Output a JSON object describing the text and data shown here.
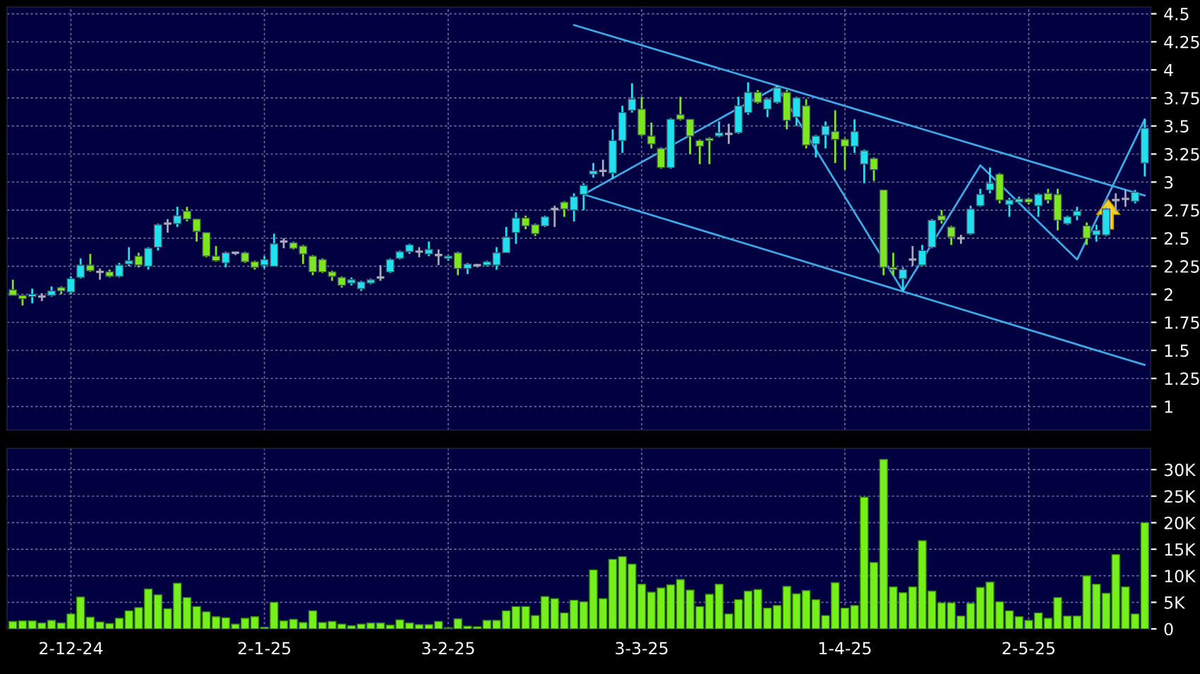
{
  "chart_data": [
    {
      "type": "candlestick",
      "grid": true,
      "ylim": [
        0.79,
        4.56
      ],
      "yticks": [
        1,
        1.25,
        1.5,
        1.75,
        2,
        2.25,
        2.5,
        2.75,
        3,
        3.25,
        3.5,
        3.75,
        4,
        4.25,
        4.5
      ],
      "categories": [
        null,
        null,
        null,
        null,
        null,
        null,
        null,
        null,
        null,
        null,
        null,
        null,
        null,
        null,
        null,
        null,
        null,
        null,
        null,
        null,
        null,
        null,
        null,
        null,
        null,
        null,
        null,
        null,
        null,
        null,
        null,
        null,
        null,
        null,
        null,
        null,
        null,
        null,
        null,
        null,
        null,
        null,
        null,
        null,
        null,
        null,
        null,
        null,
        null,
        null,
        null,
        null,
        null,
        null,
        null,
        null,
        null,
        null,
        null,
        null,
        null,
        null,
        null,
        null,
        null,
        null,
        null,
        null,
        null,
        null,
        null,
        null,
        null,
        null,
        null,
        null,
        null,
        null,
        null,
        null,
        null,
        null,
        null,
        null,
        null,
        null,
        null,
        null,
        null,
        null,
        null,
        null,
        null,
        null,
        null,
        null,
        null,
        null,
        null,
        null,
        null,
        null,
        null,
        null,
        null,
        null,
        null,
        null,
        null,
        null,
        null,
        null,
        null,
        null,
        null,
        null,
        null,
        null
      ],
      "ohlc": [
        [
          2.04,
          2.13,
          1.99,
          1.99
        ],
        [
          1.99,
          1.99,
          1.9,
          1.96
        ],
        [
          1.98,
          2.05,
          1.92,
          2.0
        ],
        [
          1.98,
          2.01,
          1.94,
          1.98
        ],
        [
          1.99,
          2.07,
          1.98,
          2.03
        ],
        [
          2.06,
          2.07,
          2.0,
          2.03
        ],
        [
          2.02,
          2.16,
          2.0,
          2.14
        ],
        [
          2.15,
          2.32,
          2.14,
          2.26
        ],
        [
          2.26,
          2.36,
          2.2,
          2.21
        ],
        [
          2.2,
          2.23,
          2.13,
          2.2
        ],
        [
          2.2,
          2.22,
          2.15,
          2.16
        ],
        [
          2.16,
          2.28,
          2.15,
          2.26
        ],
        [
          2.27,
          2.42,
          2.25,
          2.3
        ],
        [
          2.34,
          2.37,
          2.24,
          2.26
        ],
        [
          2.25,
          2.42,
          2.22,
          2.41
        ],
        [
          2.42,
          2.63,
          2.39,
          2.62
        ],
        [
          2.63,
          2.67,
          2.55,
          2.63
        ],
        [
          2.63,
          2.78,
          2.6,
          2.7
        ],
        [
          2.74,
          2.78,
          2.65,
          2.67
        ],
        [
          2.67,
          2.67,
          2.47,
          2.56
        ],
        [
          2.55,
          2.55,
          2.33,
          2.34
        ],
        [
          2.34,
          2.43,
          2.29,
          2.3
        ],
        [
          2.28,
          2.38,
          2.24,
          2.37
        ],
        [
          2.37,
          2.38,
          2.35,
          2.37
        ],
        [
          2.37,
          2.38,
          2.28,
          2.29
        ],
        [
          2.29,
          2.3,
          2.22,
          2.24
        ],
        [
          2.26,
          2.34,
          2.23,
          2.31
        ],
        [
          2.25,
          2.54,
          2.25,
          2.45
        ],
        [
          2.47,
          2.5,
          2.41,
          2.47
        ],
        [
          2.46,
          2.47,
          2.4,
          2.41
        ],
        [
          2.43,
          2.44,
          2.27,
          2.36
        ],
        [
          2.34,
          2.35,
          2.17,
          2.2
        ],
        [
          2.31,
          2.32,
          2.19,
          2.2
        ],
        [
          2.2,
          2.21,
          2.12,
          2.16
        ],
        [
          2.15,
          2.16,
          2.06,
          2.08
        ],
        [
          2.1,
          2.15,
          2.08,
          2.13
        ],
        [
          2.05,
          2.12,
          2.03,
          2.11
        ],
        [
          2.1,
          2.14,
          2.09,
          2.13
        ],
        [
          2.15,
          2.26,
          2.12,
          2.15
        ],
        [
          2.2,
          2.32,
          2.19,
          2.31
        ],
        [
          2.32,
          2.39,
          2.31,
          2.38
        ],
        [
          2.38,
          2.45,
          2.36,
          2.44
        ],
        [
          2.38,
          2.42,
          2.33,
          2.38
        ],
        [
          2.36,
          2.47,
          2.34,
          2.4
        ],
        [
          2.35,
          2.4,
          2.26,
          2.35
        ],
        [
          2.32,
          2.35,
          2.3,
          2.34
        ],
        [
          2.37,
          2.38,
          2.17,
          2.23
        ],
        [
          2.23,
          2.28,
          2.18,
          2.27
        ],
        [
          2.26,
          2.27,
          2.24,
          2.26
        ],
        [
          2.26,
          2.3,
          2.25,
          2.29
        ],
        [
          2.26,
          2.42,
          2.22,
          2.37
        ],
        [
          2.37,
          2.6,
          2.37,
          2.51
        ],
        [
          2.55,
          2.73,
          2.45,
          2.68
        ],
        [
          2.68,
          2.7,
          2.58,
          2.61
        ],
        [
          2.62,
          2.63,
          2.52,
          2.54
        ],
        [
          2.61,
          2.7,
          2.6,
          2.69
        ],
        [
          2.76,
          2.79,
          2.6,
          2.76
        ],
        [
          2.82,
          2.83,
          2.69,
          2.76
        ],
        [
          2.75,
          2.9,
          2.65,
          2.87
        ],
        [
          2.89,
          2.99,
          2.75,
          2.97
        ],
        [
          3.07,
          3.17,
          3.04,
          3.1
        ],
        [
          3.1,
          3.2,
          3.05,
          3.1
        ],
        [
          3.08,
          3.47,
          3.03,
          3.37
        ],
        [
          3.37,
          3.68,
          3.26,
          3.62
        ],
        [
          3.64,
          3.88,
          3.62,
          3.74
        ],
        [
          3.65,
          3.76,
          3.41,
          3.42
        ],
        [
          3.41,
          3.53,
          3.3,
          3.34
        ],
        [
          3.3,
          3.31,
          3.12,
          3.13
        ],
        [
          3.13,
          3.57,
          3.12,
          3.56
        ],
        [
          3.6,
          3.76,
          3.55,
          3.56
        ],
        [
          3.56,
          3.56,
          3.25,
          3.41
        ],
        [
          3.37,
          3.38,
          3.16,
          3.32
        ],
        [
          3.39,
          3.4,
          3.16,
          3.37
        ],
        [
          3.41,
          3.54,
          3.4,
          3.44
        ],
        [
          3.43,
          3.52,
          3.34,
          3.43
        ],
        [
          3.44,
          3.76,
          3.43,
          3.68
        ],
        [
          3.62,
          3.89,
          3.6,
          3.8
        ],
        [
          3.8,
          3.82,
          3.7,
          3.71
        ],
        [
          3.65,
          3.75,
          3.58,
          3.74
        ],
        [
          3.71,
          3.86,
          3.7,
          3.84
        ],
        [
          3.8,
          3.82,
          3.47,
          3.55
        ],
        [
          3.58,
          3.76,
          3.5,
          3.75
        ],
        [
          3.68,
          3.74,
          3.3,
          3.33
        ],
        [
          3.34,
          3.42,
          3.22,
          3.41
        ],
        [
          3.42,
          3.54,
          3.3,
          3.5
        ],
        [
          3.45,
          3.64,
          3.17,
          3.38
        ],
        [
          3.38,
          3.39,
          3.11,
          3.32
        ],
        [
          3.32,
          3.56,
          3.26,
          3.45
        ],
        [
          3.16,
          3.29,
          2.99,
          3.28
        ],
        [
          3.21,
          3.22,
          3.01,
          3.11
        ],
        [
          2.93,
          2.93,
          2.17,
          2.24
        ],
        [
          2.24,
          2.37,
          2.17,
          2.22
        ],
        [
          2.14,
          2.24,
          2.03,
          2.22
        ],
        [
          2.31,
          2.43,
          2.25,
          2.31
        ],
        [
          2.26,
          2.44,
          2.25,
          2.39
        ],
        [
          2.42,
          2.67,
          2.41,
          2.66
        ],
        [
          2.7,
          2.75,
          2.63,
          2.66
        ],
        [
          2.6,
          2.61,
          2.44,
          2.51
        ],
        [
          2.5,
          2.53,
          2.45,
          2.5
        ],
        [
          2.54,
          2.79,
          2.53,
          2.76
        ],
        [
          2.79,
          2.94,
          2.78,
          2.89
        ],
        [
          2.93,
          3.13,
          2.9,
          2.99
        ],
        [
          3.07,
          3.08,
          2.81,
          2.84
        ],
        [
          2.8,
          2.86,
          2.69,
          2.84
        ],
        [
          2.82,
          2.87,
          2.81,
          2.85
        ],
        [
          2.85,
          2.86,
          2.8,
          2.82
        ],
        [
          2.79,
          2.9,
          2.69,
          2.89
        ],
        [
          2.9,
          2.94,
          2.81,
          2.84
        ],
        [
          2.89,
          2.94,
          2.57,
          2.66
        ],
        [
          2.63,
          2.7,
          2.62,
          2.69
        ],
        [
          2.7,
          2.78,
          2.66,
          2.74
        ],
        [
          2.61,
          2.64,
          2.44,
          2.5
        ],
        [
          2.53,
          2.62,
          2.47,
          2.57
        ],
        [
          2.53,
          2.78,
          2.52,
          2.76
        ],
        [
          2.84,
          2.9,
          2.74,
          2.84
        ],
        [
          2.85,
          2.93,
          2.78,
          2.85
        ],
        [
          2.83,
          2.93,
          2.81,
          2.91
        ],
        [
          3.17,
          3.56,
          3.05,
          3.48
        ]
      ],
      "colors": [
        "#7ce61e",
        "#7ce61e",
        "#20e0f0",
        "#a8a8b8",
        "#20e0f0",
        "#7ce61e",
        "#20e0f0",
        "#20e0f0",
        "#7ce61e",
        "#a8a8b8",
        "#7ce61e",
        "#20e0f0",
        "#20e0f0",
        "#7ce61e",
        "#20e0f0",
        "#20e0f0",
        "#a8a8b8",
        "#20e0f0",
        "#7ce61e",
        "#7ce61e",
        "#7ce61e",
        "#7ce61e",
        "#20e0f0",
        "#a8a8b8",
        "#7ce61e",
        "#7ce61e",
        "#20e0f0",
        "#20e0f0",
        "#a8a8b8",
        "#7ce61e",
        "#7ce61e",
        "#7ce61e",
        "#7ce61e",
        "#7ce61e",
        "#7ce61e",
        "#20e0f0",
        "#20e0f0",
        "#20e0f0",
        "#a8a8b8",
        "#20e0f0",
        "#20e0f0",
        "#20e0f0",
        "#a8a8b8",
        "#20e0f0",
        "#a8a8b8",
        "#20e0f0",
        "#7ce61e",
        "#20e0f0",
        "#a8a8b8",
        "#20e0f0",
        "#20e0f0",
        "#20e0f0",
        "#20e0f0",
        "#7ce61e",
        "#7ce61e",
        "#20e0f0",
        "#a8a8b8",
        "#7ce61e",
        "#20e0f0",
        "#20e0f0",
        "#20e0f0",
        "#a8a8b8",
        "#20e0f0",
        "#20e0f0",
        "#20e0f0",
        "#7ce61e",
        "#7ce61e",
        "#7ce61e",
        "#20e0f0",
        "#7ce61e",
        "#7ce61e",
        "#7ce61e",
        "#7ce61e",
        "#20e0f0",
        "#a8a8b8",
        "#20e0f0",
        "#20e0f0",
        "#7ce61e",
        "#20e0f0",
        "#20e0f0",
        "#7ce61e",
        "#20e0f0",
        "#7ce61e",
        "#20e0f0",
        "#20e0f0",
        "#7ce61e",
        "#7ce61e",
        "#20e0f0",
        "#20e0f0",
        "#7ce61e",
        "#7ce61e",
        "#7ce61e",
        "#20e0f0",
        "#a8a8b8",
        "#20e0f0",
        "#20e0f0",
        "#7ce61e",
        "#7ce61e",
        "#a8a8b8",
        "#20e0f0",
        "#20e0f0",
        "#20e0f0",
        "#7ce61e",
        "#20e0f0",
        "#20e0f0",
        "#7ce61e",
        "#20e0f0",
        "#7ce61e",
        "#7ce61e",
        "#20e0f0",
        "#20e0f0",
        "#7ce61e",
        "#20e0f0",
        "#20e0f0",
        "#a8a8b8",
        "#a8a8b8",
        "#20e0f0",
        "#20e0f0"
      ],
      "series": [
        {
          "type": "line",
          "color": "#3fa9e8",
          "values": [
            null,
            null,
            null,
            null,
            null,
            null,
            null,
            null,
            null,
            null,
            null,
            null,
            null,
            null,
            null,
            null,
            null,
            null,
            null,
            null,
            null,
            null,
            null,
            null,
            null,
            null,
            null,
            null,
            null,
            null,
            null,
            null,
            null,
            null,
            null,
            null,
            null,
            null,
            null,
            null,
            null,
            null,
            null,
            null,
            null,
            null,
            null,
            null,
            null,
            null,
            null,
            null,
            null,
            null,
            null,
            null,
            null,
            null,
            4.4,
            null,
            null,
            null,
            null,
            null,
            null,
            null,
            null,
            null,
            null,
            null,
            null,
            null,
            null,
            null,
            null,
            null,
            null,
            null,
            null,
            null,
            null,
            null,
            null,
            null,
            null,
            null,
            null,
            null,
            null,
            null,
            null,
            null,
            null,
            null,
            null,
            null,
            null,
            null,
            null,
            null,
            null,
            null,
            null,
            null,
            null,
            null,
            null,
            null,
            null,
            null,
            null,
            null,
            null,
            null,
            null,
            null,
            null,
            2.88
          ]
        },
        {
          "type": "line",
          "color": "#3fa9e8",
          "values": [
            null,
            null,
            null,
            null,
            null,
            null,
            null,
            null,
            null,
            null,
            null,
            null,
            null,
            null,
            null,
            null,
            null,
            null,
            null,
            null,
            null,
            null,
            null,
            null,
            null,
            null,
            null,
            null,
            null,
            null,
            null,
            null,
            null,
            null,
            null,
            null,
            null,
            null,
            null,
            null,
            null,
            null,
            null,
            null,
            null,
            null,
            null,
            null,
            null,
            null,
            null,
            null,
            null,
            null,
            null,
            null,
            null,
            null,
            null,
            2.89,
            null,
            null,
            null,
            null,
            null,
            null,
            null,
            null,
            null,
            null,
            null,
            null,
            null,
            null,
            null,
            null,
            null,
            null,
            null,
            null,
            null,
            null,
            null,
            null,
            null,
            null,
            null,
            null,
            null,
            null,
            null,
            null,
            null,
            null,
            null,
            null,
            null,
            null,
            null,
            null,
            null,
            null,
            null,
            null,
            null,
            null,
            null,
            null,
            null,
            null,
            null,
            null,
            null,
            null,
            null,
            null,
            null,
            1.37
          ]
        },
        {
          "type": "line",
          "color": "#3fa9e8",
          "values": [
            null,
            null,
            null,
            null,
            null,
            null,
            null,
            null,
            null,
            null,
            null,
            null,
            null,
            null,
            null,
            null,
            null,
            null,
            null,
            null,
            null,
            null,
            null,
            null,
            null,
            null,
            null,
            null,
            null,
            null,
            null,
            null,
            null,
            null,
            null,
            null,
            null,
            null,
            null,
            null,
            null,
            null,
            null,
            null,
            null,
            null,
            null,
            null,
            null,
            null,
            null,
            null,
            null,
            null,
            null,
            null,
            null,
            null,
            null,
            2.89,
            null,
            null,
            null,
            null,
            null,
            null,
            null,
            null,
            null,
            null,
            null,
            null,
            null,
            null,
            null,
            null,
            null,
            null,
            null,
            3.85,
            null,
            null,
            null,
            null,
            null,
            null,
            null,
            null,
            null,
            null,
            null,
            null,
            2.03,
            null,
            null,
            null,
            null,
            null,
            null,
            null,
            3.15,
            null,
            null,
            null,
            null,
            null,
            null,
            null,
            null,
            null,
            2.31,
            null,
            null,
            null,
            null,
            null,
            null,
            3.56
          ]
        }
      ]
    },
    {
      "type": "bar",
      "grid": true,
      "color": "#76f01a",
      "ylim": [
        0,
        34
      ],
      "yticks": [
        0,
        {
          "value": 5,
          "label": "5K"
        },
        {
          "value": 10,
          "label": "10K"
        },
        {
          "value": 15,
          "label": "15K"
        },
        {
          "value": 20,
          "label": "20K"
        },
        {
          "value": 25,
          "label": "25K"
        },
        {
          "value": 30,
          "label": "30K"
        }
      ],
      "categories": [
        null,
        null,
        null,
        null,
        null,
        null,
        "2-12-24",
        null,
        null,
        null,
        null,
        null,
        null,
        null,
        null,
        null,
        null,
        null,
        null,
        null,
        null,
        null,
        null,
        null,
        null,
        null,
        "2-1-25",
        null,
        null,
        null,
        null,
        null,
        null,
        null,
        null,
        null,
        null,
        null,
        null,
        null,
        null,
        null,
        null,
        null,
        null,
        "3-2-25",
        null,
        null,
        null,
        null,
        null,
        null,
        null,
        null,
        null,
        null,
        null,
        null,
        null,
        null,
        null,
        null,
        null,
        null,
        null,
        "3-3-25",
        null,
        null,
        null,
        null,
        null,
        null,
        null,
        null,
        null,
        null,
        null,
        null,
        null,
        null,
        null,
        null,
        null,
        null,
        null,
        null,
        "1-4-25",
        null,
        null,
        null,
        null,
        null,
        null,
        null,
        null,
        null,
        null,
        null,
        null,
        null,
        null,
        null,
        null,
        null,
        null,
        "2-5-25",
        null,
        null,
        null,
        null,
        null,
        null,
        null,
        null,
        null,
        null,
        null,
        null
      ],
      "values": [
        1.4,
        1.5,
        1.5,
        1.1,
        1.6,
        1.1,
        2.8,
        6.0,
        2.2,
        1.3,
        1.0,
        2.0,
        3.4,
        4.0,
        7.5,
        6.4,
        3.8,
        8.6,
        5.9,
        4.2,
        3.2,
        2.3,
        2.1,
        0.9,
        2.0,
        2.3,
        0.3,
        5.0,
        1.5,
        1.8,
        1.2,
        3.4,
        1.2,
        1.4,
        0.9,
        0.6,
        0.9,
        1.1,
        1.1,
        0.7,
        1.7,
        1.1,
        0.8,
        0.8,
        1.4,
        0.2,
        1.9,
        0.5,
        0.4,
        1.6,
        1.6,
        3.4,
        4.2,
        4.2,
        2.5,
        6.1,
        5.7,
        3.0,
        5.4,
        5.1,
        11.1,
        5.7,
        13.1,
        13.6,
        12.2,
        8.4,
        6.9,
        7.7,
        8.3,
        9.3,
        7.3,
        4.2,
        6.5,
        8.4,
        2.8,
        5.5,
        7.1,
        7.4,
        3.9,
        4.4,
        8.0,
        6.6,
        7.2,
        5.5,
        2.5,
        8.7,
        3.9,
        4.4,
        24.8,
        12.5,
        31.9,
        7.9,
        6.8,
        7.9,
        16.6,
        7.1,
        4.9,
        4.9,
        2.4,
        4.8,
        7.8,
        8.8,
        5.1,
        3.4,
        2.3,
        1.6,
        3.0,
        2.0,
        5.9,
        2.4,
        2.4,
        10.0,
        8.4,
        6.7,
        14.0,
        7.9,
        2.8,
        20.0
      ]
    }
  ]
}
